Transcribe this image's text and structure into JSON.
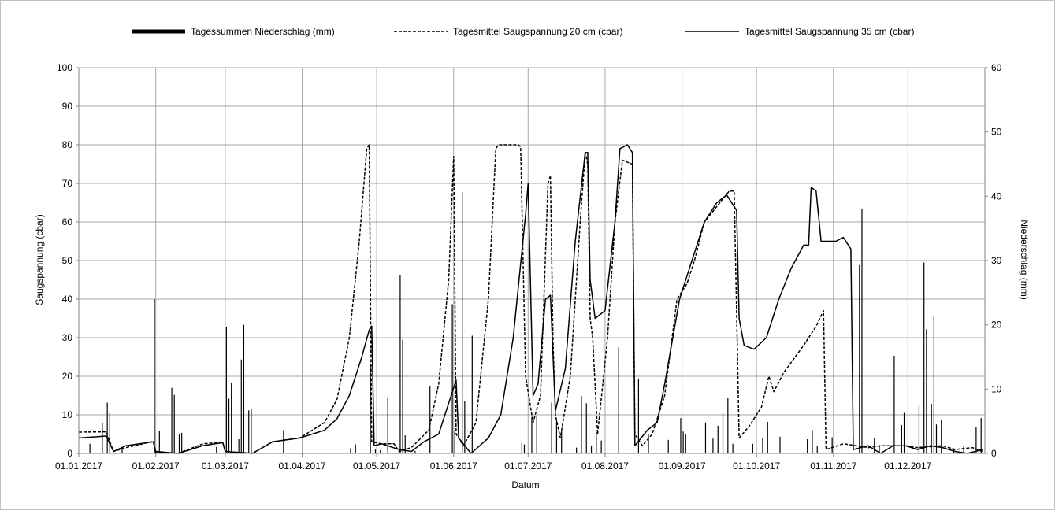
{
  "chart_data": {
    "type": "line",
    "xlabel": "Datum",
    "ylabel_left": "Saugspannung (cbar)",
    "ylabel_right": "Niederschlag (mm)",
    "ylim_left": [
      0,
      100
    ],
    "ylim_right": [
      0,
      60
    ],
    "yticks_left": [
      "0",
      "10",
      "20",
      "30",
      "40",
      "50",
      "60",
      "70",
      "80",
      "90",
      "100"
    ],
    "yticks_right": [
      "0",
      "10",
      "20",
      "30",
      "40",
      "50",
      "60"
    ],
    "xlim": [
      "01.01.2017",
      "31.12.2017"
    ],
    "xticks": [
      "01.01.2017",
      "01.02.2017",
      "01.03.2017",
      "01.04.2017",
      "01.05.2017",
      "01.06.2017",
      "01.07.2017",
      "01.08.2017",
      "01.09.2017",
      "01.10.2017",
      "01.11.2017",
      "01.12.2017"
    ],
    "grid": true,
    "legend_position": "top",
    "series": [
      {
        "name": "Tagessummen Niederschlag (mm)",
        "type": "bar",
        "axis": "right",
        "points": [
          [
            "05.01.2017",
            1.5
          ],
          [
            "10.01.2017",
            4.8
          ],
          [
            "12.01.2017",
            7.9
          ],
          [
            "13.01.2017",
            6.3
          ],
          [
            "18.01.2017",
            0.7
          ],
          [
            "31.01.2017",
            24.0
          ],
          [
            "02.02.2017",
            3.5
          ],
          [
            "07.02.2017",
            10.2
          ],
          [
            "08.02.2017",
            9.1
          ],
          [
            "10.02.2017",
            3.0
          ],
          [
            "11.02.2017",
            3.2
          ],
          [
            "25.02.2017",
            1.0
          ],
          [
            "01.03.2017",
            19.7
          ],
          [
            "02.03.2017",
            8.5
          ],
          [
            "03.03.2017",
            10.9
          ],
          [
            "06.03.2017",
            2.2
          ],
          [
            "07.03.2017",
            14.6
          ],
          [
            "08.03.2017",
            20.0
          ],
          [
            "10.03.2017",
            6.7
          ],
          [
            "11.03.2017",
            6.9
          ],
          [
            "24.03.2017",
            3.6
          ],
          [
            "20.04.2017",
            0.8
          ],
          [
            "22.04.2017",
            1.4
          ],
          [
            "28.04.2017",
            13.9
          ],
          [
            "30.04.2017",
            0.6
          ],
          [
            "02.05.2017",
            0.5
          ],
          [
            "05.05.2017",
            8.7
          ],
          [
            "10.05.2017",
            27.7
          ],
          [
            "11.05.2017",
            17.7
          ],
          [
            "12.05.2017",
            2.8
          ],
          [
            "16.05.2017",
            0.4
          ],
          [
            "22.05.2017",
            10.5
          ],
          [
            "31.05.2017",
            23.2
          ],
          [
            "01.06.2017",
            3.5
          ],
          [
            "04.06.2017",
            40.6
          ],
          [
            "05.06.2017",
            8.2
          ],
          [
            "08.06.2017",
            18.3
          ],
          [
            "28.06.2017",
            1.6
          ],
          [
            "29.06.2017",
            1.4
          ],
          [
            "02.07.2017",
            5.6
          ],
          [
            "04.07.2017",
            5.8
          ],
          [
            "10.07.2017",
            7.9
          ],
          [
            "12.07.2017",
            5.2
          ],
          [
            "14.07.2017",
            3.5
          ],
          [
            "20.07.2017",
            0.9
          ],
          [
            "22.07.2017",
            8.9
          ],
          [
            "24.07.2017",
            7.8
          ],
          [
            "26.07.2017",
            1.2
          ],
          [
            "28.07.2017",
            3.3
          ],
          [
            "30.07.2017",
            2.0
          ],
          [
            "06.08.2017",
            16.5
          ],
          [
            "14.08.2017",
            11.6
          ],
          [
            "18.08.2017",
            3.0
          ],
          [
            "26.08.2017",
            2.1
          ],
          [
            "31.08.2017",
            5.5
          ],
          [
            "01.09.2017",
            3.4
          ],
          [
            "02.09.2017",
            3.0
          ],
          [
            "10.09.2017",
            4.8
          ],
          [
            "13.09.2017",
            2.3
          ],
          [
            "15.09.2017",
            4.3
          ],
          [
            "17.09.2017",
            6.3
          ],
          [
            "19.09.2017",
            8.6
          ],
          [
            "21.09.2017",
            1.5
          ],
          [
            "29.09.2017",
            1.5
          ],
          [
            "03.10.2017",
            2.4
          ],
          [
            "05.10.2017",
            4.9
          ],
          [
            "10.10.2017",
            2.6
          ],
          [
            "21.10.2017",
            2.2
          ],
          [
            "23.10.2017",
            3.6
          ],
          [
            "25.10.2017",
            1.2
          ],
          [
            "31.10.2017",
            2.5
          ],
          [
            "11.11.2017",
            29.3
          ],
          [
            "12.11.2017",
            38.1
          ],
          [
            "17.11.2017",
            2.4
          ],
          [
            "19.11.2017",
            1.3
          ],
          [
            "25.11.2017",
            15.2
          ],
          [
            "28.11.2017",
            4.4
          ],
          [
            "29.11.2017",
            6.3
          ],
          [
            "05.12.2017",
            7.6
          ],
          [
            "07.12.2017",
            29.7
          ],
          [
            "08.12.2017",
            19.3
          ],
          [
            "10.12.2017",
            7.7
          ],
          [
            "11.12.2017",
            21.4
          ],
          [
            "12.12.2017",
            4.5
          ],
          [
            "14.12.2017",
            5.2
          ],
          [
            "19.12.2017",
            0.8
          ],
          [
            "23.12.2017",
            1.1
          ],
          [
            "28.12.2017",
            4.1
          ],
          [
            "30.12.2017",
            5.5
          ]
        ]
      },
      {
        "name": "Tagesmittel Saugspannung 20 cm (cbar)",
        "type": "line",
        "style": "dashed",
        "axis": "left",
        "points": [
          [
            "01.01.2017",
            5.5
          ],
          [
            "12.01.2017",
            5.6
          ],
          [
            "15.01.2017",
            0.5
          ],
          [
            "20.01.2017",
            1.5
          ],
          [
            "31.01.2017",
            3.1
          ],
          [
            "01.02.2017",
            0.2
          ],
          [
            "10.02.2017",
            0.0
          ],
          [
            "20.02.2017",
            2.5
          ],
          [
            "28.02.2017",
            2.9
          ],
          [
            "01.03.2017",
            0.5
          ],
          [
            "12.03.2017",
            0.0
          ],
          [
            "20.03.2017",
            3.0
          ],
          [
            "31.03.2017",
            4.0
          ],
          [
            "10.04.2017",
            8.0
          ],
          [
            "15.04.2017",
            14.0
          ],
          [
            "20.04.2017",
            30.0
          ],
          [
            "24.04.2017",
            55.0
          ],
          [
            "27.04.2017",
            79.0
          ],
          [
            "28.04.2017",
            80.0
          ],
          [
            "29.04.2017",
            3.0
          ],
          [
            "03.05.2017",
            2.5
          ],
          [
            "08.05.2017",
            2.5
          ],
          [
            "10.05.2017",
            0.5
          ],
          [
            "15.05.2017",
            1.5
          ],
          [
            "22.05.2017",
            6.0
          ],
          [
            "26.05.2017",
            18.0
          ],
          [
            "30.05.2017",
            45.0
          ],
          [
            "01.06.2017",
            77.0
          ],
          [
            "02.06.2017",
            5.0
          ],
          [
            "05.06.2017",
            2.0
          ],
          [
            "10.06.2017",
            8.0
          ],
          [
            "15.06.2017",
            40.0
          ],
          [
            "18.06.2017",
            79.0
          ],
          [
            "19.06.2017",
            80.0
          ],
          [
            "27.06.2017",
            80.0
          ],
          [
            "28.06.2017",
            79.5
          ],
          [
            "30.06.2017",
            20.0
          ],
          [
            "03.07.2017",
            8.0
          ],
          [
            "06.07.2017",
            15.0
          ],
          [
            "09.07.2017",
            70.0
          ],
          [
            "10.07.2017",
            72.0
          ],
          [
            "11.07.2017",
            30.0
          ],
          [
            "12.07.2017",
            10.0
          ],
          [
            "14.07.2017",
            4.0
          ],
          [
            "18.07.2017",
            20.0
          ],
          [
            "22.07.2017",
            60.0
          ],
          [
            "24.07.2017",
            78.0
          ],
          [
            "25.07.2017",
            75.0
          ],
          [
            "26.07.2017",
            35.0
          ],
          [
            "27.07.2017",
            30.0
          ],
          [
            "29.07.2017",
            5.0
          ],
          [
            "02.08.2017",
            30.0
          ],
          [
            "05.08.2017",
            60.0
          ],
          [
            "08.08.2017",
            76.0
          ],
          [
            "12.08.2017",
            75.0
          ],
          [
            "13.08.2017",
            5.0
          ],
          [
            "16.08.2017",
            2.0
          ],
          [
            "20.08.2017",
            5.0
          ],
          [
            "25.08.2017",
            15.0
          ],
          [
            "30.08.2017",
            40.0
          ],
          [
            "03.09.2017",
            44.0
          ],
          [
            "06.09.2017",
            50.0
          ],
          [
            "10.09.2017",
            60.0
          ],
          [
            "15.09.2017",
            64.0
          ],
          [
            "20.09.2017",
            68.0
          ],
          [
            "22.09.2017",
            68.0
          ],
          [
            "24.09.2017",
            4.0
          ],
          [
            "28.09.2017",
            7.0
          ],
          [
            "03.10.2017",
            12.0
          ],
          [
            "06.10.2017",
            20.0
          ],
          [
            "08.10.2017",
            16.0
          ],
          [
            "12.10.2017",
            21.0
          ],
          [
            "20.10.2017",
            28.0
          ],
          [
            "25.10.2017",
            33.0
          ],
          [
            "28.10.2017",
            37.0
          ],
          [
            "29.10.2017",
            1.0
          ],
          [
            "05.11.2017",
            2.5
          ],
          [
            "10.11.2017",
            2.0
          ],
          [
            "15.11.2017",
            1.5
          ],
          [
            "20.11.2017",
            2.0
          ],
          [
            "30.11.2017",
            2.0
          ],
          [
            "05.12.2017",
            1.5
          ],
          [
            "15.12.2017",
            2.0
          ],
          [
            "20.12.2017",
            1.0
          ],
          [
            "27.12.2017",
            1.5
          ],
          [
            "31.12.2017",
            0.5
          ]
        ]
      },
      {
        "name": "Tagesmittel Saugspannung 35 cm (cbar)",
        "type": "line",
        "style": "solid",
        "axis": "left",
        "points": [
          [
            "01.01.2017",
            4.0
          ],
          [
            "12.01.2017",
            4.5
          ],
          [
            "15.01.2017",
            0.5
          ],
          [
            "20.01.2017",
            2.0
          ],
          [
            "31.01.2017",
            3.0
          ],
          [
            "01.02.2017",
            0.5
          ],
          [
            "10.02.2017",
            0.0
          ],
          [
            "20.02.2017",
            2.0
          ],
          [
            "28.02.2017",
            2.8
          ],
          [
            "01.03.2017",
            0.5
          ],
          [
            "12.03.2017",
            0.0
          ],
          [
            "20.03.2017",
            3.0
          ],
          [
            "31.03.2017",
            4.0
          ],
          [
            "10.04.2017",
            6.0
          ],
          [
            "15.04.2017",
            9.0
          ],
          [
            "20.04.2017",
            15.0
          ],
          [
            "25.04.2017",
            25.0
          ],
          [
            "28.04.2017",
            32.0
          ],
          [
            "29.04.2017",
            33.0
          ],
          [
            "30.04.2017",
            2.0
          ],
          [
            "03.05.2017",
            2.5
          ],
          [
            "10.05.2017",
            1.0
          ],
          [
            "15.05.2017",
            0.5
          ],
          [
            "20.05.2017",
            3.0
          ],
          [
            "26.05.2017",
            5.0
          ],
          [
            "31.05.2017",
            15.0
          ],
          [
            "02.06.2017",
            19.0
          ],
          [
            "03.06.2017",
            4.0
          ],
          [
            "08.06.2017",
            0.0
          ],
          [
            "15.06.2017",
            4.0
          ],
          [
            "20.06.2017",
            10.0
          ],
          [
            "25.06.2017",
            30.0
          ],
          [
            "30.06.2017",
            62.0
          ],
          [
            "01.07.2017",
            70.0
          ],
          [
            "03.07.2017",
            15.0
          ],
          [
            "05.07.2017",
            18.0
          ],
          [
            "08.07.2017",
            40.0
          ],
          [
            "10.07.2017",
            41.0
          ],
          [
            "12.07.2017",
            11.0
          ],
          [
            "16.07.2017",
            22.0
          ],
          [
            "20.07.2017",
            55.0
          ],
          [
            "24.07.2017",
            78.0
          ],
          [
            "25.07.2017",
            78.0
          ],
          [
            "26.07.2017",
            45.0
          ],
          [
            "28.07.2017",
            35.0
          ],
          [
            "01.08.2017",
            37.0
          ],
          [
            "05.08.2017",
            60.0
          ],
          [
            "07.08.2017",
            79.0
          ],
          [
            "10.08.2017",
            80.0
          ],
          [
            "12.08.2017",
            78.0
          ],
          [
            "13.08.2017",
            2.0
          ],
          [
            "18.08.2017",
            6.0
          ],
          [
            "22.08.2017",
            8.0
          ],
          [
            "25.08.2017",
            18.0
          ],
          [
            "31.08.2017",
            40.0
          ],
          [
            "05.09.2017",
            50.0
          ],
          [
            "10.09.2017",
            60.0
          ],
          [
            "15.09.2017",
            65.0
          ],
          [
            "19.09.2017",
            67.0
          ],
          [
            "23.09.2017",
            63.0
          ],
          [
            "24.09.2017",
            35.0
          ],
          [
            "26.09.2017",
            28.0
          ],
          [
            "30.09.2017",
            27.0
          ],
          [
            "05.10.2017",
            30.0
          ],
          [
            "10.10.2017",
            40.0
          ],
          [
            "15.10.2017",
            48.0
          ],
          [
            "20.10.2017",
            54.0
          ],
          [
            "22.10.2017",
            54.0
          ],
          [
            "23.10.2017",
            69.0
          ],
          [
            "25.10.2017",
            68.0
          ],
          [
            "27.10.2017",
            55.0
          ],
          [
            "02.11.2017",
            55.0
          ],
          [
            "05.11.2017",
            56.0
          ],
          [
            "08.11.2017",
            53.0
          ],
          [
            "09.11.2017",
            1.0
          ],
          [
            "15.11.2017",
            2.0
          ],
          [
            "20.11.2017",
            0.0
          ],
          [
            "25.11.2017",
            2.0
          ],
          [
            "30.11.2017",
            2.0
          ],
          [
            "05.12.2017",
            1.0
          ],
          [
            "10.12.2017",
            2.0
          ],
          [
            "15.12.2017",
            1.5
          ],
          [
            "20.12.2017",
            0.5
          ],
          [
            "25.12.2017",
            0.0
          ],
          [
            "31.12.2017",
            1.0
          ]
        ]
      }
    ]
  }
}
